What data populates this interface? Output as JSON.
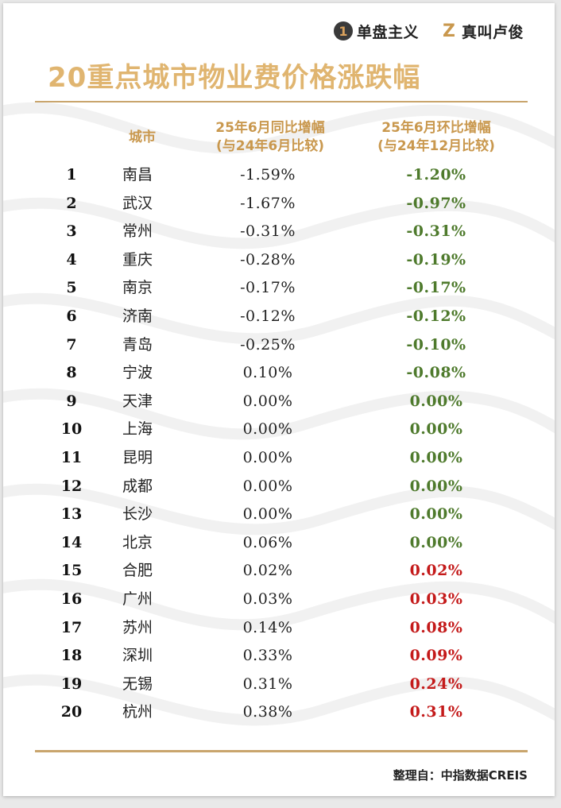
{
  "brands": [
    {
      "icon": "1",
      "label": "单盘主义"
    },
    {
      "icon": "Z",
      "label": "真叫卢俊"
    }
  ],
  "title": "20重点城市物业费价格涨跌幅",
  "table": {
    "headers": {
      "city": "城市",
      "yoy_line1": "25年6月同比增幅",
      "yoy_line2": "(与24年6月比较)",
      "mom_line1": "25年6月环比增幅",
      "mom_line2": "(与24年12月比较)"
    },
    "rows": [
      {
        "rank": "1",
        "city": "南昌",
        "yoy": "-1.59%",
        "mom": "-1.20%"
      },
      {
        "rank": "2",
        "city": "武汉",
        "yoy": "-1.67%",
        "mom": "-0.97%"
      },
      {
        "rank": "3",
        "city": "常州",
        "yoy": "-0.31%",
        "mom": "-0.31%"
      },
      {
        "rank": "4",
        "city": "重庆",
        "yoy": "-0.28%",
        "mom": "-0.19%"
      },
      {
        "rank": "5",
        "city": "南京",
        "yoy": "-0.17%",
        "mom": "-0.17%"
      },
      {
        "rank": "6",
        "city": "济南",
        "yoy": "-0.12%",
        "mom": "-0.12%"
      },
      {
        "rank": "7",
        "city": "青岛",
        "yoy": "-0.25%",
        "mom": "-0.10%"
      },
      {
        "rank": "8",
        "city": "宁波",
        "yoy": "0.10%",
        "mom": "-0.08%"
      },
      {
        "rank": "9",
        "city": "天津",
        "yoy": "0.00%",
        "mom": "0.00%"
      },
      {
        "rank": "10",
        "city": "上海",
        "yoy": "0.00%",
        "mom": "0.00%"
      },
      {
        "rank": "11",
        "city": "昆明",
        "yoy": "0.00%",
        "mom": "0.00%"
      },
      {
        "rank": "12",
        "city": "成都",
        "yoy": "0.00%",
        "mom": "0.00%"
      },
      {
        "rank": "13",
        "city": "长沙",
        "yoy": "0.00%",
        "mom": "0.00%"
      },
      {
        "rank": "14",
        "city": "北京",
        "yoy": "0.06%",
        "mom": "0.00%"
      },
      {
        "rank": "15",
        "city": "合肥",
        "yoy": "0.02%",
        "mom": "0.02%"
      },
      {
        "rank": "16",
        "city": "广州",
        "yoy": "0.03%",
        "mom": "0.03%"
      },
      {
        "rank": "17",
        "city": "苏州",
        "yoy": "0.14%",
        "mom": "0.08%"
      },
      {
        "rank": "18",
        "city": "深圳",
        "yoy": "0.33%",
        "mom": "0.09%"
      },
      {
        "rank": "19",
        "city": "无锡",
        "yoy": "0.31%",
        "mom": "0.24%"
      },
      {
        "rank": "20",
        "city": "杭州",
        "yoy": "0.38%",
        "mom": "0.31%"
      }
    ]
  },
  "footer": "整理自：中指数据CREIS",
  "colors": {
    "title": "#e0b570",
    "header": "#c9984e",
    "rule": "#c9a56d",
    "mom_non_positive": "#4e7a2c",
    "mom_positive": "#c41a1a"
  }
}
